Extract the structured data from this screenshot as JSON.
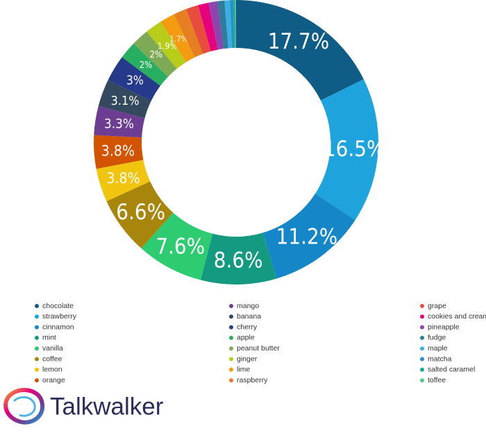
{
  "chart_data": {
    "type": "donut",
    "categories": [
      "chocolate",
      "strawberry",
      "cinnamon",
      "mint",
      "vanilla",
      "coffee",
      "lemon",
      "orange",
      "mango",
      "banana",
      "cherry",
      "apple",
      "peanut butter",
      "ginger",
      "lime",
      "raspberry",
      "grape",
      "cookies and cream",
      "pineapple",
      "fudge",
      "maple",
      "matcha",
      "salted caramel",
      "toffee"
    ],
    "values": [
      17.7,
      16.5,
      11.2,
      8.6,
      7.6,
      6.6,
      3.8,
      3.8,
      3.3,
      3.1,
      3,
      2,
      2,
      1.9,
      1.7,
      1.5,
      1.4,
      1.2,
      1.0,
      0.8,
      0.6,
      0.4,
      0.2,
      0.1
    ],
    "value_labels": [
      "17.7%",
      "16.5%",
      "11.2%",
      "8.6%",
      "7.6%",
      "6.6%",
      "3.8%",
      "3.8%",
      "3.3%",
      "3.1%",
      "3%",
      "2%",
      "2%",
      "1.9%",
      "1.7%",
      null,
      null,
      null,
      null,
      null,
      null,
      null,
      null,
      null
    ],
    "colors": [
      "#0f5d87",
      "#1ea3dd",
      "#1586c7",
      "#139a80",
      "#2ecc71",
      "#a8860b",
      "#f1c40f",
      "#d35400",
      "#6c3d91",
      "#34495e",
      "#263a8c",
      "#27ae60",
      "#7faa55",
      "#b8cc1a",
      "#f39c12",
      "#e67e22",
      "#e74c3c",
      "#e6007e",
      "#8e44ad",
      "#2e7d9c",
      "#3ab0e2",
      "#2d8fc9",
      "#1aab8f",
      "#4cd08a"
    ],
    "legend": "bottom"
  },
  "logo": "Talkwalker"
}
